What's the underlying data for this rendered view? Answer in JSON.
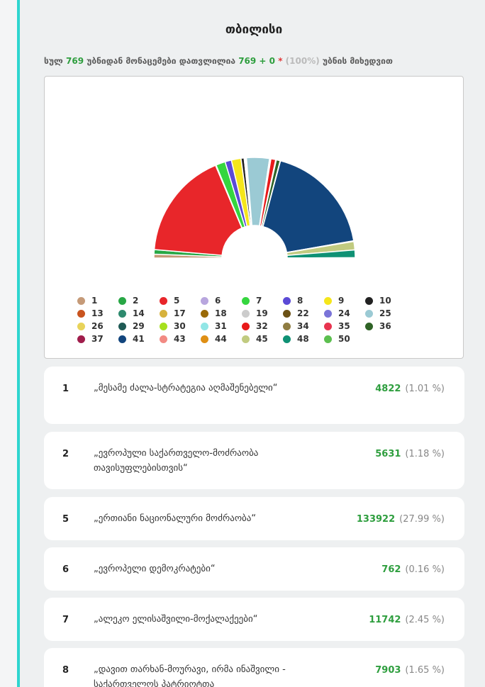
{
  "region": {
    "title": "თბილისი"
  },
  "summary": {
    "prefix": "სულ",
    "total_precincts": "769",
    "mid": "უბნიდან მონაცემები დათვლილია",
    "counted": "769 + 0",
    "star": "*",
    "percent": "(100%)",
    "suffix": "უბნის მიხედვით"
  },
  "chart_data": {
    "type": "pie",
    "shape": "semicircle-donut",
    "legend_position": "bottom",
    "slices": [
      {
        "label": "1",
        "value": 4822,
        "color": "#c59a78"
      },
      {
        "label": "2",
        "value": 5631,
        "color": "#28a745"
      },
      {
        "label": "5",
        "value": 133922,
        "color": "#e8262a"
      },
      {
        "label": "6",
        "value": 762,
        "color": "#b8a6de"
      },
      {
        "label": "7",
        "value": 11742,
        "color": "#35d63f"
      },
      {
        "label": "8",
        "value": 7903,
        "color": "#5b4ad6"
      },
      {
        "label": "9",
        "value": 12000,
        "color": "#f5e61b"
      },
      {
        "label": "10",
        "value": 3900,
        "color": "#222222"
      },
      {
        "label": "13",
        "value": 400,
        "color": "#c9541f"
      },
      {
        "label": "14",
        "value": 400,
        "color": "#2e8a6e"
      },
      {
        "label": "17",
        "value": 400,
        "color": "#d7b23d"
      },
      {
        "label": "18",
        "value": 400,
        "color": "#9a6a08"
      },
      {
        "label": "19",
        "value": 400,
        "color": "#cccccc"
      },
      {
        "label": "22",
        "value": 400,
        "color": "#6b5115"
      },
      {
        "label": "24",
        "value": 400,
        "color": "#7a74d8"
      },
      {
        "label": "25",
        "value": 28500,
        "color": "#9bcad4"
      },
      {
        "label": "26",
        "value": 400,
        "color": "#e8d35a"
      },
      {
        "label": "29",
        "value": 400,
        "color": "#1f5a55"
      },
      {
        "label": "30",
        "value": 400,
        "color": "#a6e01e"
      },
      {
        "label": "31",
        "value": 400,
        "color": "#92e6e6"
      },
      {
        "label": "32",
        "value": 6000,
        "color": "#e81a1a"
      },
      {
        "label": "34",
        "value": 400,
        "color": "#8f7d42"
      },
      {
        "label": "35",
        "value": 400,
        "color": "#e8344f"
      },
      {
        "label": "36",
        "value": 4800,
        "color": "#2f6326"
      },
      {
        "label": "37",
        "value": 400,
        "color": "#a01d4b"
      },
      {
        "label": "41",
        "value": 140000,
        "color": "#12457d"
      },
      {
        "label": "43",
        "value": 400,
        "color": "#f28a83"
      },
      {
        "label": "44",
        "value": 400,
        "color": "#df8f14"
      },
      {
        "label": "45",
        "value": 10500,
        "color": "#c1cb80"
      },
      {
        "label": "48",
        "value": 9600,
        "color": "#0f9174"
      },
      {
        "label": "50",
        "value": 400,
        "color": "#5cbf4f"
      }
    ]
  },
  "parties": [
    {
      "number": "1",
      "name": "„მესამე ძალა-სტრატეგია აღმაშენებელი“",
      "votes": "4822",
      "percent": "(1.01 %)"
    },
    {
      "number": "2",
      "name": "„ევროპული საქართველო-მოძრაობა თავისუფლებისთვის“",
      "votes": "5631",
      "percent": "(1.18 %)"
    },
    {
      "number": "5",
      "name": "„ერთიანი ნაციონალური მოძრაობა“",
      "votes": "133922",
      "percent": "(27.99 %)"
    },
    {
      "number": "6",
      "name": "„ევროპელი დემოკრატები“",
      "votes": "762",
      "percent": "(0.16 %)"
    },
    {
      "number": "7",
      "name": "„ალეკო ელისაშვილი-მოქალაქეები“",
      "votes": "11742",
      "percent": "(2.45 %)"
    },
    {
      "number": "8",
      "name": "„დავით თარხან-მოურავი, ირმა ინაშვილი - საქართველოს პატრიოტთა",
      "votes": "7903",
      "percent": "(1.65 %)"
    }
  ]
}
